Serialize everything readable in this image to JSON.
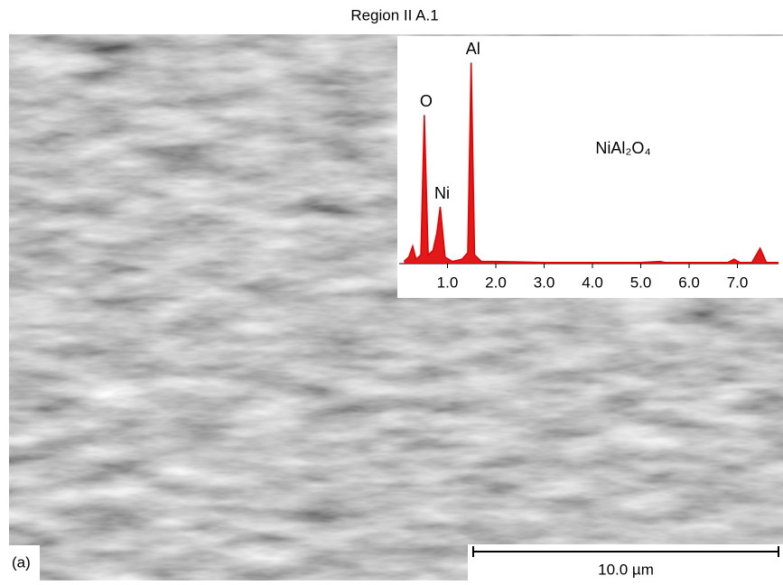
{
  "title": "Region II A.1",
  "panel_label": "(a)",
  "scale_bar": "10.0 µm",
  "chart_data": {
    "type": "line",
    "compound": "NiAl₂O₄",
    "annotations": [
      {
        "text": "O",
        "x": 0.52
      },
      {
        "text": "Ni",
        "x": 0.85
      },
      {
        "text": "Al",
        "x": 1.49
      }
    ],
    "x": [
      0.1,
      0.2,
      0.28,
      0.35,
      0.45,
      0.52,
      0.6,
      0.7,
      0.78,
      0.85,
      0.95,
      1.1,
      1.3,
      1.42,
      1.49,
      1.56,
      1.7,
      2.0,
      3.0,
      4.0,
      5.0,
      5.4,
      5.5,
      6.0,
      6.8,
      6.93,
      7.05,
      7.3,
      7.47,
      7.6,
      7.85
    ],
    "series": [
      {
        "color": "#e00000",
        "values": [
          1,
          3,
          8,
          2,
          4,
          68,
          4,
          6,
          14,
          26,
          3,
          1,
          2,
          5,
          92,
          4,
          1,
          1,
          0.5,
          0.5,
          0.5,
          1,
          0.5,
          0.5,
          0.5,
          2,
          0.5,
          0.5,
          7,
          0.5,
          0.5
        ]
      }
    ],
    "xlim": [
      0,
      7.85
    ],
    "ylim": [
      0,
      100
    ],
    "xticks": [
      {
        "value": 1,
        "label": "1.0"
      },
      {
        "value": 2,
        "label": "2.0"
      },
      {
        "value": 3,
        "label": "3.0"
      },
      {
        "value": 4,
        "label": "4.0"
      },
      {
        "value": 5,
        "label": "5.0"
      },
      {
        "value": 6,
        "label": "6.0"
      },
      {
        "value": 7,
        "label": "7.0"
      }
    ]
  }
}
